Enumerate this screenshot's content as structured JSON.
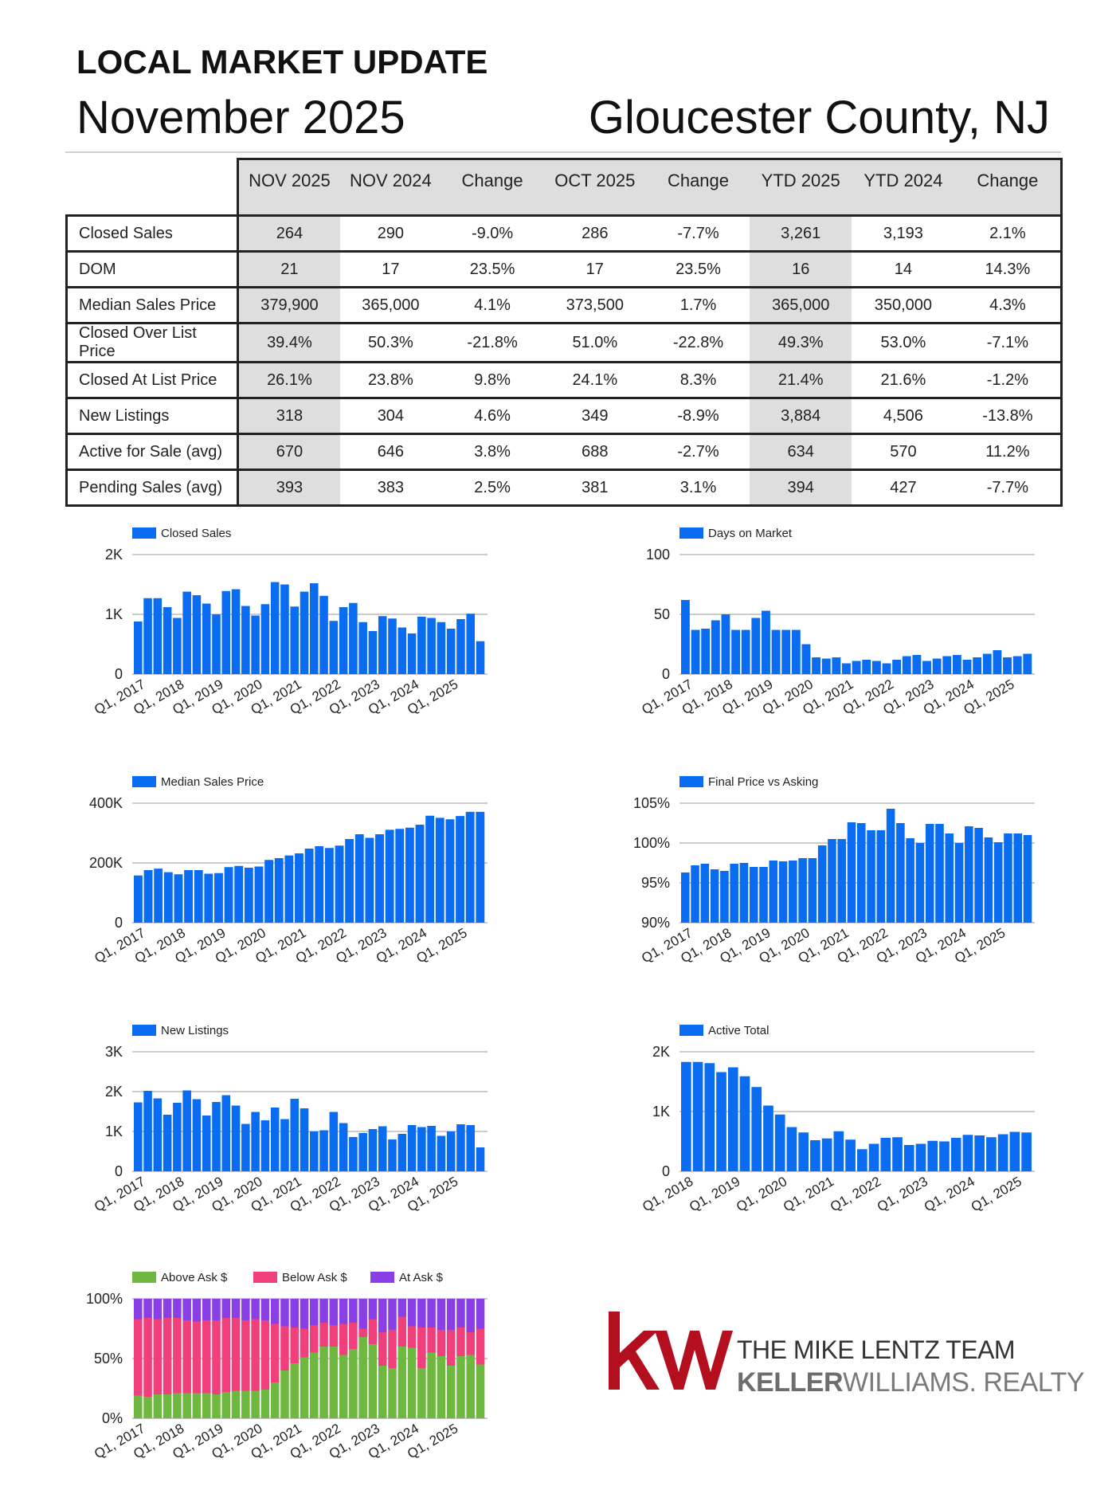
{
  "header": {
    "title": "LOCAL MARKET UPDATE",
    "month": "November 2025",
    "location": "Gloucester County, NJ"
  },
  "table": {
    "columns": [
      "NOV 2025",
      "NOV 2024",
      "Change",
      "OCT 2025",
      "Change",
      "YTD 2025",
      "YTD 2024",
      "Change"
    ],
    "rows": [
      {
        "label": "Closed Sales",
        "values": [
          "264",
          "290",
          "-9.0%",
          "286",
          "-7.7%",
          "3,261",
          "3,193",
          "2.1%"
        ]
      },
      {
        "label": "DOM",
        "values": [
          "21",
          "17",
          "23.5%",
          "17",
          "23.5%",
          "16",
          "14",
          "14.3%"
        ]
      },
      {
        "label": "Median Sales Price",
        "values": [
          "379,900",
          "365,000",
          "4.1%",
          "373,500",
          "1.7%",
          "365,000",
          "350,000",
          "4.3%"
        ]
      },
      {
        "label": "Closed Over List Price",
        "values": [
          "39.4%",
          "50.3%",
          "-21.8%",
          "51.0%",
          "-22.8%",
          "49.3%",
          "53.0%",
          "-7.1%"
        ]
      },
      {
        "label": "Closed At List Price",
        "values": [
          "26.1%",
          "23.8%",
          "9.8%",
          "24.1%",
          "8.3%",
          "21.4%",
          "21.6%",
          "-1.2%"
        ]
      },
      {
        "label": "New Listings",
        "values": [
          "318",
          "304",
          "4.6%",
          "349",
          "-8.9%",
          "3,884",
          "4,506",
          "-13.8%"
        ]
      },
      {
        "label": "Active for Sale (avg)",
        "values": [
          "670",
          "646",
          "3.8%",
          "688",
          "-2.7%",
          "634",
          "570",
          "11.2%"
        ]
      },
      {
        "label": "Pending Sales (avg)",
        "values": [
          "393",
          "383",
          "2.5%",
          "381",
          "3.1%",
          "394",
          "427",
          "-7.7%"
        ]
      }
    ]
  },
  "colors": {
    "bar": "#0a6cf0",
    "above_ask": "#6fb83f",
    "below_ask": "#f03f7a",
    "at_ask": "#8a3ee6",
    "positive": "#2ea336",
    "negative": "#d8232a",
    "kw_red": "#b40f1e"
  },
  "logo": {
    "mark": "kw",
    "team": "THE MIKE LENTZ TEAM",
    "brand_bold": "KELLER",
    "brand_rest": "WILLIAMS. REALTY"
  },
  "chart_data": [
    {
      "type": "bar",
      "legend": "Closed Sales",
      "ylim": [
        0,
        2000
      ],
      "yticks": [
        "0",
        "1K",
        "2K"
      ],
      "xticks": [
        "Q1, 2017",
        "Q1, 2018",
        "Q1, 2019",
        "Q1, 2020",
        "Q1, 2021",
        "Q1, 2022",
        "Q1, 2023",
        "Q1, 2024",
        "Q1, 2025"
      ],
      "values": [
        880,
        1270,
        1270,
        1120,
        940,
        1380,
        1320,
        1180,
        1000,
        1390,
        1420,
        1140,
        980,
        1170,
        1540,
        1500,
        1130,
        1380,
        1520,
        1310,
        890,
        1120,
        1190,
        870,
        720,
        970,
        930,
        780,
        680,
        960,
        940,
        870,
        760,
        920,
        1010,
        550
      ]
    },
    {
      "type": "bar",
      "legend": "Days on Market",
      "ylim": [
        0,
        100
      ],
      "yticks": [
        "0",
        "50",
        "100"
      ],
      "xticks": [
        "Q1, 2017",
        "Q1, 2018",
        "Q1, 2019",
        "Q1, 2020",
        "Q1, 2021",
        "Q1, 2022",
        "Q1, 2023",
        "Q1, 2024",
        "Q1, 2025"
      ],
      "values": [
        62,
        37,
        38,
        45,
        50,
        37,
        37,
        47,
        53,
        37,
        37,
        37,
        25,
        14,
        13,
        14,
        9,
        11,
        12,
        11,
        9,
        12,
        15,
        16,
        11,
        13,
        15,
        16,
        12,
        14,
        17,
        20,
        14,
        15,
        17
      ]
    },
    {
      "type": "bar",
      "legend": "Median Sales Price",
      "ylim": [
        0,
        400000
      ],
      "yticks": [
        "0",
        "200K",
        "400K"
      ],
      "xticks": [
        "Q1, 2017",
        "Q1, 2018",
        "Q1, 2019",
        "Q1, 2020",
        "Q1, 2021",
        "Q1, 2022",
        "Q1, 2023",
        "Q1, 2024",
        "Q1, 2025"
      ],
      "values": [
        158000,
        176000,
        181000,
        169000,
        162000,
        176000,
        176000,
        164000,
        166000,
        186000,
        190000,
        184000,
        188000,
        210000,
        216000,
        225000,
        232000,
        248000,
        256000,
        250000,
        258000,
        280000,
        296000,
        284000,
        296000,
        311000,
        314000,
        318000,
        328000,
        358000,
        351000,
        346000,
        357000,
        371000,
        371000
      ]
    },
    {
      "type": "bar",
      "legend": "Final Price vs Asking",
      "ylim": [
        90,
        105
      ],
      "yticks": [
        "90%",
        "95%",
        "100%",
        "105%"
      ],
      "xticks": [
        "Q1, 2017",
        "Q1, 2018",
        "Q1, 2019",
        "Q1, 2020",
        "Q1, 2021",
        "Q1, 2022",
        "Q1, 2023",
        "Q1, 2024",
        "Q1, 2025"
      ],
      "values": [
        96.3,
        97.2,
        97.4,
        96.7,
        96.5,
        97.4,
        97.5,
        97.0,
        97.0,
        97.8,
        97.7,
        97.8,
        98.1,
        98.1,
        99.7,
        100.5,
        100.5,
        102.6,
        102.5,
        101.6,
        101.6,
        104.3,
        102.5,
        100.6,
        100.0,
        102.4,
        102.4,
        101.2,
        100.0,
        102.1,
        101.9,
        100.7,
        100.1,
        101.2,
        101.2,
        101.0
      ]
    },
    {
      "type": "bar",
      "legend": "New Listings",
      "ylim": [
        0,
        3000
      ],
      "yticks": [
        "0",
        "1K",
        "2K",
        "3K"
      ],
      "xticks": [
        "Q1, 2017",
        "Q1, 2018",
        "Q1, 2019",
        "Q1, 2020",
        "Q1, 2021",
        "Q1, 2022",
        "Q1, 2023",
        "Q1, 2024",
        "Q1, 2025"
      ],
      "values": [
        1730,
        2020,
        1830,
        1420,
        1720,
        2030,
        1810,
        1400,
        1740,
        1910,
        1650,
        1190,
        1490,
        1280,
        1600,
        1310,
        1820,
        1580,
        1000,
        1030,
        1490,
        1210,
        860,
        960,
        1060,
        1130,
        800,
        940,
        1160,
        1110,
        1140,
        890,
        1000,
        1180,
        1160,
        600
      ]
    },
    {
      "type": "bar",
      "legend": "Active Total",
      "ylim": [
        0,
        2000
      ],
      "yticks": [
        "0",
        "1K",
        "2K"
      ],
      "xticks": [
        "Q1, 2018",
        "Q1, 2019",
        "Q1, 2020",
        "Q1, 2021",
        "Q1, 2022",
        "Q1, 2023",
        "Q1, 2024",
        "Q1, 2025"
      ],
      "values": [
        1830,
        1830,
        1810,
        1660,
        1740,
        1590,
        1410,
        1100,
        950,
        740,
        650,
        520,
        550,
        670,
        530,
        370,
        460,
        560,
        570,
        440,
        460,
        510,
        500,
        560,
        610,
        600,
        570,
        620,
        660,
        650
      ]
    },
    {
      "type": "stacked-bar",
      "ylim": [
        0,
        100
      ],
      "yticks": [
        "0%",
        "50%",
        "100%"
      ],
      "xticks": [
        "Q1, 2017",
        "Q1, 2018",
        "Q1, 2019",
        "Q1, 2020",
        "Q1, 2021",
        "Q1, 2022",
        "Q1, 2023",
        "Q1, 2024",
        "Q1, 2025"
      ],
      "series": [
        {
          "name": "Above Ask $",
          "values": [
            19,
            18,
            20,
            20,
            21,
            21,
            21,
            21,
            20,
            22,
            23,
            23,
            23,
            24,
            30,
            40,
            46,
            51,
            55,
            60,
            60,
            53,
            58,
            68,
            62,
            44,
            42,
            60,
            59,
            42,
            55,
            52,
            44,
            52,
            53,
            45
          ]
        },
        {
          "name": "Below Ask $",
          "values": [
            64,
            66,
            63,
            64,
            63,
            61,
            60,
            61,
            62,
            62,
            61,
            59,
            60,
            58,
            49,
            37,
            30,
            24,
            23,
            20,
            18,
            26,
            22,
            7,
            21,
            28,
            32,
            25,
            18,
            34,
            21,
            22,
            30,
            24,
            19,
            30
          ]
        },
        {
          "name": "At Ask $",
          "values": [
            17,
            16,
            17,
            16,
            16,
            18,
            19,
            18,
            18,
            16,
            16,
            18,
            17,
            18,
            21,
            23,
            24,
            25,
            22,
            20,
            22,
            21,
            20,
            25,
            17,
            28,
            26,
            15,
            23,
            24,
            24,
            26,
            26,
            24,
            28,
            25
          ]
        }
      ]
    }
  ]
}
